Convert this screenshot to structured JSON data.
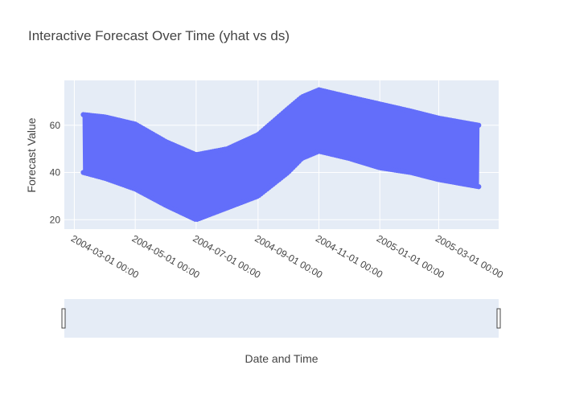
{
  "chart_data": {
    "type": "scatter",
    "mode": "lines+markers",
    "title": "Interactive Forecast Over Time (yhat vs ds)",
    "xlabel": "Date and Time",
    "ylabel": "Forecast Value",
    "x_ticks": [
      "2004-03-01 00:00",
      "2004-05-01 00:00",
      "2004-07-01 00:00",
      "2004-09-01 00:00",
      "2004-11-01 00:00",
      "2005-01-01 00:00",
      "2005-03-01 00:00"
    ],
    "y_ticks": [
      20,
      40,
      60
    ],
    "xlim": [
      "2004-02-20",
      "2005-04-30"
    ],
    "ylim": [
      16,
      79
    ],
    "grid": true,
    "rangeslider": true,
    "color": "#636efa",
    "plot_bg": "#e5ecf6",
    "series": [
      {
        "x_start": "2004-03-10",
        "x_end": "2005-04-10",
        "upper_envelope": [
          [
            "2004-03-10",
            64.5
          ],
          [
            "2004-04-01",
            63.5
          ],
          [
            "2004-05-01",
            60.5
          ],
          [
            "2004-06-01",
            53
          ],
          [
            "2004-07-01",
            47.5
          ],
          [
            "2004-08-01",
            50
          ],
          [
            "2004-09-01",
            56
          ],
          [
            "2004-10-01",
            67
          ],
          [
            "2004-10-15",
            72
          ],
          [
            "2004-11-01",
            75
          ],
          [
            "2004-12-01",
            72
          ],
          [
            "2005-01-01",
            69
          ],
          [
            "2005-02-01",
            66
          ],
          [
            "2005-03-01",
            63
          ],
          [
            "2005-04-10",
            60
          ]
        ],
        "lower_envelope": [
          [
            "2004-03-10",
            40
          ],
          [
            "2004-04-01",
            37.5
          ],
          [
            "2004-05-01",
            33
          ],
          [
            "2004-06-01",
            26
          ],
          [
            "2004-07-01",
            20
          ],
          [
            "2004-08-01",
            25
          ],
          [
            "2004-09-01",
            30
          ],
          [
            "2004-10-01",
            40
          ],
          [
            "2004-10-15",
            46
          ],
          [
            "2004-11-01",
            49
          ],
          [
            "2004-12-01",
            46
          ],
          [
            "2005-01-01",
            42
          ],
          [
            "2005-02-01",
            40
          ],
          [
            "2005-03-01",
            37
          ],
          [
            "2005-04-10",
            34
          ]
        ]
      }
    ]
  }
}
